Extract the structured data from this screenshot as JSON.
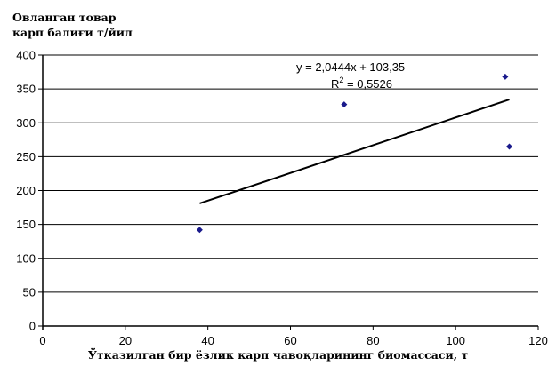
{
  "chart_data": {
    "type": "scatter",
    "title": "",
    "ylabel_lines": [
      "Овланган товар",
      "карп балиғи т/йил"
    ],
    "xlabel": "Ўтказилган бир ёзлик карп чавоқларининг биомассаси, т",
    "xlim": [
      0,
      120
    ],
    "ylim": [
      0,
      400
    ],
    "x_ticks": [
      0,
      20,
      40,
      60,
      80,
      100,
      120
    ],
    "y_ticks": [
      0,
      50,
      100,
      150,
      200,
      250,
      300,
      350,
      400
    ],
    "grid": "horizontal",
    "marker_color": "#1a1a8c",
    "points": [
      {
        "x": 38,
        "y": 142
      },
      {
        "x": 73,
        "y": 327
      },
      {
        "x": 112,
        "y": 368
      },
      {
        "x": 113,
        "y": 265
      }
    ],
    "trendline": {
      "x_start": 38,
      "x_end": 113,
      "slope": 2.0444,
      "intercept": 103.35,
      "equation": "y = 2,0444x + 103,35",
      "r2_prefix": "R",
      "r2_exp": "2",
      "r2_value": " = 0,5526"
    }
  }
}
